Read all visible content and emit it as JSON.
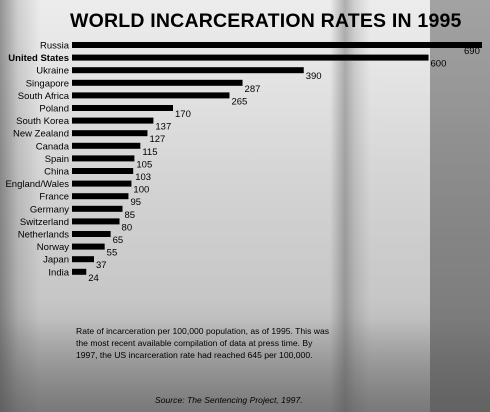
{
  "chart_data": {
    "type": "bar",
    "orientation": "horizontal",
    "title": "WORLD INCARCERATION RATES IN 1995",
    "categories": [
      "Russia",
      "United States",
      "Ukraine",
      "Singapore",
      "South Africa",
      "Poland",
      "South Korea",
      "New Zealand",
      "Canada",
      "Spain",
      "China",
      "England/Wales",
      "France",
      "Germany",
      "Switzerland",
      "Netherlands",
      "Norway",
      "Japan",
      "India"
    ],
    "values": [
      690,
      600,
      390,
      287,
      265,
      170,
      137,
      127,
      115,
      105,
      103,
      100,
      95,
      85,
      80,
      65,
      55,
      37,
      24
    ],
    "value_labels": [
      "690",
      "600",
      "390",
      "287",
      "265",
      "170",
      "137",
      "127",
      "115",
      "105",
      "103",
      "100",
      "95",
      "85",
      "80",
      "65",
      "55",
      "37",
      "24"
    ],
    "highlight_category": "United States",
    "xlim": [
      0,
      690
    ],
    "grid": false,
    "bar_color": "#000000"
  },
  "note": "Rate of incarceration per 100,000 population, as of 1995. This was the most recent available compilation of data at press time. By 1997, the US incarceration rate had reached 645 per 100,000.",
  "source": "Source: The Sentencing Project, 1997."
}
